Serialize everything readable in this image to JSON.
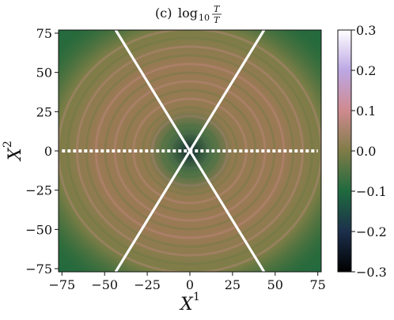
{
  "chart_data": {
    "type": "heatmap",
    "title": "(c)  log10 T/T",
    "title_parts": {
      "prefix": "(c)",
      "function": "log",
      "subscript": "10",
      "numerator": "T",
      "denominator": "T"
    },
    "xlabel": "X",
    "xlabel_superscript": "1",
    "ylabel": "X",
    "ylabel_superscript": "2",
    "xlim": [
      -77,
      77
    ],
    "ylim": [
      -77,
      77
    ],
    "x_ticks": [
      -75,
      -50,
      -25,
      0,
      25,
      50,
      75
    ],
    "x_tick_labels": [
      "−75",
      "−50",
      "−25",
      "0",
      "25",
      "50",
      "75"
    ],
    "y_ticks": [
      75,
      50,
      25,
      0,
      -25,
      -50,
      -75
    ],
    "y_tick_labels": [
      "75",
      "50",
      "25",
      "0",
      "−25",
      "−50",
      "−75"
    ],
    "colorbar": {
      "range": [
        -0.3,
        0.3
      ],
      "ticks": [
        0.3,
        0.2,
        0.1,
        0.0,
        -0.1,
        -0.2,
        -0.3
      ],
      "tick_labels": [
        "0.3",
        "0.2",
        "0.1",
        "0.0",
        "−0.1",
        "−0.2",
        "−0.3"
      ],
      "colormap": "cubehelix",
      "stops": [
        {
          "value": -0.3,
          "color": "#000000"
        },
        {
          "value": -0.2,
          "color": "#1c2f4b"
        },
        {
          "value": -0.1,
          "color": "#1f6a3f"
        },
        {
          "value": 0.0,
          "color": "#7f7c47"
        },
        {
          "value": 0.1,
          "color": "#cf8a8f"
        },
        {
          "value": 0.2,
          "color": "#bca7e4"
        },
        {
          "value": 0.3,
          "color": "#ffffff"
        }
      ]
    },
    "overlay_lines": [
      {
        "name": "diagonal-line-1",
        "points": [
          [
            -43.5,
            77
          ],
          [
            43.5,
            -77
          ]
        ],
        "color": "#ffffff"
      },
      {
        "name": "diagonal-line-2",
        "points": [
          [
            43.5,
            77
          ],
          [
            -43.5,
            -77
          ]
        ],
        "color": "#ffffff"
      },
      {
        "name": "horizontal-line",
        "points": [
          [
            -75,
            0
          ],
          [
            75,
            0
          ]
        ],
        "color": "#ffffff",
        "style": "dotted"
      }
    ],
    "grid": false
  }
}
